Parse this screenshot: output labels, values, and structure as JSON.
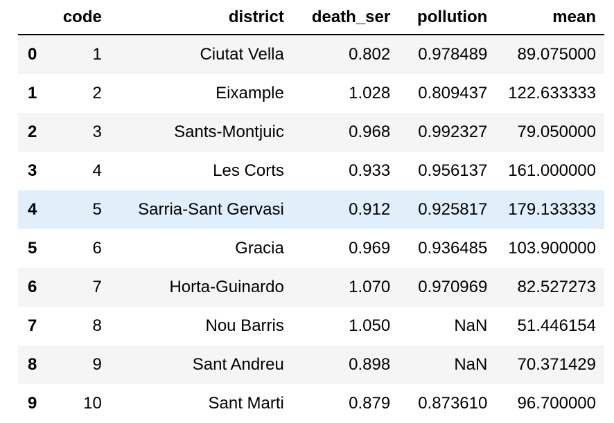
{
  "table": {
    "columns": [
      "",
      "code",
      "district",
      "death_ser",
      "pollution",
      "mean"
    ],
    "rows": [
      {
        "index": "0",
        "code": "1",
        "district": "Ciutat Vella",
        "death_ser": "0.802",
        "pollution": "0.978489",
        "mean": "89.075000"
      },
      {
        "index": "1",
        "code": "2",
        "district": "Eixample",
        "death_ser": "1.028",
        "pollution": "0.809437",
        "mean": "122.633333"
      },
      {
        "index": "2",
        "code": "3",
        "district": "Sants-Montjuic",
        "death_ser": "0.968",
        "pollution": "0.992327",
        "mean": "79.050000"
      },
      {
        "index": "3",
        "code": "4",
        "district": "Les Corts",
        "death_ser": "0.933",
        "pollution": "0.956137",
        "mean": "161.000000"
      },
      {
        "index": "4",
        "code": "5",
        "district": "Sarria-Sant Gervasi",
        "death_ser": "0.912",
        "pollution": "0.925817",
        "mean": "179.133333"
      },
      {
        "index": "5",
        "code": "6",
        "district": "Gracia",
        "death_ser": "0.969",
        "pollution": "0.936485",
        "mean": "103.900000"
      },
      {
        "index": "6",
        "code": "7",
        "district": "Horta-Guinardo",
        "death_ser": "1.070",
        "pollution": "0.970969",
        "mean": "82.527273"
      },
      {
        "index": "7",
        "code": "8",
        "district": "Nou Barris",
        "death_ser": "1.050",
        "pollution": "NaN",
        "mean": "51.446154"
      },
      {
        "index": "8",
        "code": "9",
        "district": "Sant Andreu",
        "death_ser": "0.898",
        "pollution": "NaN",
        "mean": "70.371429"
      },
      {
        "index": "9",
        "code": "10",
        "district": "Sant Marti",
        "death_ser": "0.879",
        "pollution": "0.873610",
        "mean": "96.700000"
      }
    ],
    "hover_row": 4
  },
  "colors": {
    "stripe": "#f5f5f5",
    "hover": "#e1effa",
    "rule": "#000000"
  }
}
